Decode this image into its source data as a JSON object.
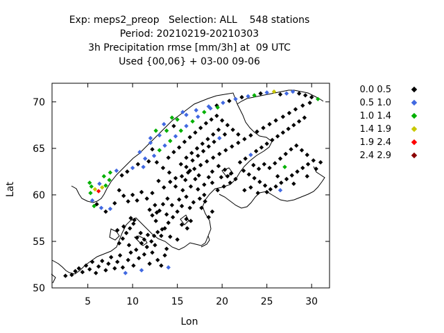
{
  "chart_data": {
    "type": "scatter",
    "title_lines": [
      "Exp: meps2_preop   Selection: ALL    548 stations",
      "Period: 20210219-20210303",
      "3h Precipitation rmse [mm/3h] at  09 UTC",
      "Used {00,06} + 03-00 09-06"
    ],
    "xlabel": "Lon",
    "ylabel": "Lat",
    "xlim": [
      1,
      32
    ],
    "ylim": [
      50,
      72
    ],
    "xticks": [
      5,
      10,
      15,
      20,
      25,
      30
    ],
    "yticks": [
      50,
      55,
      60,
      65,
      70
    ],
    "grid": false,
    "legend_position": "right",
    "classes": [
      {
        "label": "0.0 0.5",
        "color": "#000000"
      },
      {
        "label": "0.5 1.0",
        "color": "#4169e1"
      },
      {
        "label": "1.0 1.4",
        "color": "#00b000"
      },
      {
        "label": "1.4 1.9",
        "color": "#c8c800"
      },
      {
        "label": "1.9 2.4",
        "color": "#ff0000"
      },
      {
        "label": "2.4 2.9",
        "color": "#8b0000"
      }
    ],
    "points": [
      [
        2.5,
        51.3,
        0
      ],
      [
        3.2,
        51.4,
        0
      ],
      [
        3.6,
        51.8,
        0
      ],
      [
        4.0,
        52.1,
        0
      ],
      [
        4.4,
        51.7,
        0
      ],
      [
        4.8,
        52.4,
        0
      ],
      [
        5.2,
        52.0,
        0
      ],
      [
        5.5,
        52.8,
        0
      ],
      [
        5.9,
        51.6,
        0
      ],
      [
        6.2,
        52.3,
        0
      ],
      [
        6.6,
        52.9,
        0
      ],
      [
        7.0,
        51.9,
        0
      ],
      [
        7.3,
        52.6,
        0
      ],
      [
        7.6,
        53.3,
        0
      ],
      [
        8.0,
        52.1,
        0
      ],
      [
        8.3,
        52.8,
        0
      ],
      [
        8.6,
        53.5,
        0
      ],
      [
        8.9,
        52.2,
        0
      ],
      [
        9.2,
        51.6,
        1
      ],
      [
        9.5,
        53.0,
        0
      ],
      [
        9.8,
        53.8,
        0
      ],
      [
        10.1,
        52.4,
        0
      ],
      [
        10.4,
        54.1,
        0
      ],
      [
        10.7,
        53.2,
        0
      ],
      [
        11.0,
        51.9,
        1
      ],
      [
        11.3,
        53.6,
        0
      ],
      [
        11.6,
        54.4,
        0
      ],
      [
        11.9,
        52.6,
        0
      ],
      [
        12.2,
        53.8,
        0
      ],
      [
        12.5,
        54.6,
        0
      ],
      [
        12.8,
        53.0,
        0
      ],
      [
        13.2,
        52.4,
        0
      ],
      [
        13.6,
        53.5,
        0
      ],
      [
        14.0,
        52.2,
        1
      ],
      [
        13.8,
        54.2,
        0
      ],
      [
        8.5,
        54.8,
        0
      ],
      [
        8.9,
        55.3,
        0
      ],
      [
        9.3,
        55.9,
        0
      ],
      [
        9.7,
        56.4,
        0
      ],
      [
        10.1,
        56.9,
        0
      ],
      [
        9.0,
        56.6,
        0
      ],
      [
        8.3,
        56.2,
        0
      ],
      [
        10.5,
        55.4,
        0
      ],
      [
        10.9,
        55.9,
        0
      ],
      [
        11.3,
        55.2,
        0
      ],
      [
        11.7,
        55.7,
        0
      ],
      [
        12.1,
        55.0,
        0
      ],
      [
        12.4,
        55.6,
        0
      ],
      [
        11.0,
        54.8,
        0
      ],
      [
        9.6,
        54.6,
        0
      ],
      [
        10.2,
        57.3,
        0
      ],
      [
        9.8,
        57.5,
        0
      ],
      [
        12.8,
        56.0,
        0
      ],
      [
        13.2,
        55.6,
        0
      ],
      [
        13.6,
        56.4,
        0
      ],
      [
        14.0,
        57.0,
        0
      ],
      [
        14.5,
        57.6,
        0
      ],
      [
        15.0,
        58.2,
        0
      ],
      [
        15.5,
        58.8,
        0
      ],
      [
        16.0,
        57.4,
        0
      ],
      [
        16.4,
        58.6,
        0
      ],
      [
        12.6,
        57.2,
        0
      ],
      [
        12.2,
        57.8,
        0
      ],
      [
        11.9,
        58.4,
        0
      ],
      [
        12.5,
        58.9,
        0
      ],
      [
        13.0,
        58.3,
        0
      ],
      [
        13.4,
        59.0,
        0
      ],
      [
        13.9,
        59.6,
        0
      ],
      [
        14.4,
        58.9,
        0
      ],
      [
        15.2,
        59.5,
        0
      ],
      [
        16.0,
        59.8,
        0
      ],
      [
        16.8,
        59.2,
        0
      ],
      [
        17.5,
        59.6,
        0
      ],
      [
        18.1,
        59.3,
        0
      ],
      [
        18.0,
        60.0,
        0
      ],
      [
        17.3,
        60.6,
        0
      ],
      [
        16.5,
        60.9,
        0
      ],
      [
        15.6,
        60.5,
        0
      ],
      [
        14.8,
        60.9,
        0
      ],
      [
        14.2,
        61.4,
        0
      ],
      [
        13.5,
        60.8,
        0
      ],
      [
        12.9,
        61.5,
        0
      ],
      [
        12.2,
        60.2,
        0
      ],
      [
        11.6,
        59.6,
        0
      ],
      [
        11.0,
        60.3,
        0
      ],
      [
        10.5,
        59.4,
        0
      ],
      [
        10.0,
        60.0,
        0
      ],
      [
        9.5,
        59.3,
        0
      ],
      [
        9.0,
        59.9,
        0
      ],
      [
        8.5,
        60.5,
        0
      ],
      [
        8.0,
        59.1,
        0
      ],
      [
        7.5,
        58.5,
        1
      ],
      [
        7.0,
        58.2,
        0
      ],
      [
        6.5,
        58.6,
        1
      ],
      [
        6.0,
        59.0,
        0
      ],
      [
        5.7,
        58.8,
        2
      ],
      [
        5.5,
        59.4,
        1
      ],
      [
        5.3,
        60.2,
        2
      ],
      [
        5.4,
        60.9,
        2
      ],
      [
        5.2,
        61.3,
        2
      ],
      [
        5.8,
        60.6,
        3
      ],
      [
        6.2,
        60.4,
        4
      ],
      [
        6.6,
        60.8,
        3
      ],
      [
        7.0,
        61.0,
        2
      ],
      [
        7.4,
        61.6,
        2
      ],
      [
        6.3,
        61.2,
        1
      ],
      [
        6.8,
        62.0,
        2
      ],
      [
        7.5,
        62.4,
        2
      ],
      [
        8.2,
        62.6,
        1
      ],
      [
        8.8,
        62.1,
        0
      ],
      [
        9.4,
        62.5,
        0
      ],
      [
        10.0,
        62.9,
        1
      ],
      [
        10.6,
        63.3,
        0
      ],
      [
        11.2,
        63.0,
        1
      ],
      [
        11.8,
        63.6,
        0
      ],
      [
        12.4,
        64.2,
        1
      ],
      [
        13.0,
        64.8,
        2
      ],
      [
        13.6,
        65.3,
        1
      ],
      [
        14.2,
        65.8,
        2
      ],
      [
        14.8,
        66.3,
        1
      ],
      [
        15.4,
        66.9,
        2
      ],
      [
        16.0,
        67.4,
        1
      ],
      [
        16.7,
        67.9,
        2
      ],
      [
        17.3,
        68.4,
        1
      ],
      [
        18.0,
        68.9,
        2
      ],
      [
        18.7,
        69.3,
        1
      ],
      [
        19.4,
        69.6,
        0
      ],
      [
        20.1,
        69.9,
        1
      ],
      [
        20.8,
        70.1,
        0
      ],
      [
        21.5,
        70.3,
        1
      ],
      [
        22.2,
        70.5,
        0
      ],
      [
        22.9,
        70.6,
        1
      ],
      [
        23.6,
        70.7,
        2
      ],
      [
        24.3,
        70.9,
        0
      ],
      [
        25.0,
        71.0,
        1
      ],
      [
        25.8,
        71.1,
        3
      ],
      [
        26.5,
        70.8,
        0
      ],
      [
        27.2,
        70.9,
        1
      ],
      [
        27.9,
        71.1,
        1
      ],
      [
        28.6,
        70.9,
        0
      ],
      [
        29.3,
        70.7,
        0
      ],
      [
        30.0,
        70.5,
        0
      ],
      [
        30.7,
        70.3,
        2
      ],
      [
        29.8,
        69.9,
        0
      ],
      [
        29.0,
        69.6,
        0
      ],
      [
        28.2,
        69.2,
        0
      ],
      [
        27.5,
        68.8,
        0
      ],
      [
        26.8,
        68.4,
        0
      ],
      [
        26.0,
        68.0,
        0
      ],
      [
        25.3,
        67.6,
        0
      ],
      [
        24.6,
        67.2,
        0
      ],
      [
        23.9,
        66.8,
        0
      ],
      [
        23.2,
        66.4,
        0
      ],
      [
        22.5,
        66.0,
        0
      ],
      [
        21.8,
        65.6,
        0
      ],
      [
        21.1,
        65.2,
        0
      ],
      [
        20.4,
        64.8,
        0
      ],
      [
        19.7,
        64.4,
        0
      ],
      [
        19.0,
        64.0,
        0
      ],
      [
        18.3,
        63.6,
        0
      ],
      [
        17.6,
        63.2,
        0
      ],
      [
        16.9,
        62.8,
        0
      ],
      [
        16.2,
        62.4,
        0
      ],
      [
        15.5,
        62.0,
        0
      ],
      [
        14.8,
        61.8,
        0
      ],
      [
        14.1,
        62.4,
        0
      ],
      [
        13.4,
        62.9,
        0
      ],
      [
        12.7,
        63.5,
        0
      ],
      [
        14.0,
        64.0,
        0
      ],
      [
        14.6,
        64.6,
        0
      ],
      [
        15.2,
        65.1,
        0
      ],
      [
        15.8,
        65.7,
        0
      ],
      [
        16.4,
        66.2,
        0
      ],
      [
        17.0,
        66.7,
        0
      ],
      [
        17.6,
        67.2,
        0
      ],
      [
        18.2,
        67.7,
        0
      ],
      [
        18.8,
        68.1,
        0
      ],
      [
        19.4,
        68.5,
        0
      ],
      [
        20.0,
        68.0,
        0
      ],
      [
        20.6,
        67.5,
        0
      ],
      [
        21.2,
        67.0,
        0
      ],
      [
        21.8,
        66.5,
        0
      ],
      [
        16.0,
        64.0,
        0
      ],
      [
        16.6,
        64.5,
        0
      ],
      [
        17.2,
        65.0,
        0
      ],
      [
        17.8,
        65.5,
        0
      ],
      [
        18.4,
        66.0,
        0
      ],
      [
        19.0,
        66.5,
        0
      ],
      [
        19.6,
        67.0,
        0
      ],
      [
        15.4,
        63.3,
        0
      ],
      [
        16.0,
        63.0,
        0
      ],
      [
        16.7,
        63.7,
        0
      ],
      [
        17.3,
        64.2,
        0
      ],
      [
        17.9,
        64.7,
        0
      ],
      [
        18.5,
        65.2,
        0
      ],
      [
        19.1,
        65.7,
        0
      ],
      [
        19.7,
        66.1,
        1
      ],
      [
        20.3,
        66.5,
        0
      ],
      [
        22.0,
        63.5,
        0
      ],
      [
        22.6,
        63.9,
        0
      ],
      [
        23.2,
        64.3,
        1
      ],
      [
        23.8,
        64.7,
        0
      ],
      [
        24.4,
        65.1,
        0
      ],
      [
        25.0,
        65.5,
        0
      ],
      [
        25.6,
        65.9,
        0
      ],
      [
        26.2,
        66.3,
        0
      ],
      [
        26.8,
        66.7,
        0
      ],
      [
        27.4,
        67.1,
        0
      ],
      [
        28.0,
        67.5,
        0
      ],
      [
        28.6,
        67.9,
        0
      ],
      [
        29.2,
        68.3,
        0
      ],
      [
        22.4,
        62.6,
        0
      ],
      [
        23.0,
        62.2,
        0
      ],
      [
        23.6,
        61.8,
        0
      ],
      [
        24.2,
        61.4,
        0
      ],
      [
        24.8,
        61.0,
        0
      ],
      [
        25.4,
        60.6,
        0
      ],
      [
        26.0,
        60.9,
        0
      ],
      [
        26.6,
        61.3,
        0
      ],
      [
        27.2,
        61.7,
        0
      ],
      [
        27.8,
        62.1,
        0
      ],
      [
        28.4,
        62.5,
        0
      ],
      [
        29.0,
        62.9,
        0
      ],
      [
        29.6,
        63.3,
        0
      ],
      [
        30.2,
        63.7,
        0
      ],
      [
        29.5,
        64.3,
        0
      ],
      [
        28.9,
        64.8,
        0
      ],
      [
        28.3,
        65.3,
        0
      ],
      [
        27.7,
        64.9,
        0
      ],
      [
        27.1,
        64.4,
        0
      ],
      [
        26.5,
        63.9,
        0
      ],
      [
        25.9,
        63.4,
        0
      ],
      [
        25.3,
        62.9,
        0
      ],
      [
        24.7,
        63.3,
        0
      ],
      [
        24.1,
        62.8,
        0
      ],
      [
        23.5,
        63.2,
        0
      ],
      [
        26.2,
        62.0,
        0
      ],
      [
        27.0,
        63.0,
        2
      ],
      [
        24.0,
        60.2,
        0
      ],
      [
        25.0,
        60.3,
        0
      ],
      [
        26.5,
        60.5,
        1
      ],
      [
        22.5,
        60.5,
        0
      ],
      [
        23.2,
        60.8,
        0
      ],
      [
        28.0,
        61.2,
        0
      ],
      [
        29.5,
        62.0,
        0
      ],
      [
        30.5,
        62.8,
        0
      ],
      [
        31.0,
        63.5,
        0
      ],
      [
        19.5,
        60.5,
        0
      ],
      [
        20.2,
        60.9,
        0
      ],
      [
        20.9,
        61.3,
        0
      ],
      [
        21.5,
        61.7,
        0
      ],
      [
        21.0,
        62.3,
        0
      ],
      [
        20.3,
        62.7,
        0
      ],
      [
        19.6,
        63.1,
        0
      ],
      [
        18.9,
        62.5,
        0
      ],
      [
        18.5,
        61.9,
        0
      ],
      [
        18.9,
        61.3,
        0
      ],
      [
        19.9,
        61.9,
        0
      ],
      [
        20.6,
        62.0,
        0
      ],
      [
        12.2,
        64.9,
        0
      ],
      [
        11.4,
        63.9,
        1
      ],
      [
        10.8,
        64.6,
        1
      ],
      [
        12.0,
        65.6,
        1
      ],
      [
        13.0,
        66.4,
        1
      ],
      [
        13.8,
        66.9,
        2
      ],
      [
        14.6,
        67.4,
        0
      ],
      [
        15.0,
        68.1,
        2
      ],
      [
        16.0,
        68.6,
        1
      ],
      [
        17.1,
        69.1,
        1
      ],
      [
        18.5,
        69.5,
        1
      ],
      [
        19.5,
        69.4,
        2
      ],
      [
        15.6,
        68.9,
        1
      ],
      [
        14.4,
        68.3,
        2
      ],
      [
        13.5,
        67.6,
        1
      ],
      [
        12.6,
        66.9,
        2
      ],
      [
        12.0,
        66.1,
        1
      ],
      [
        15.0,
        55.2,
        0
      ],
      [
        16.1,
        56.4,
        0
      ],
      [
        16.5,
        57.2,
        0
      ],
      [
        18.5,
        57.6,
        0
      ],
      [
        14.2,
        55.5,
        0
      ],
      [
        13.3,
        56.3,
        0
      ],
      [
        15.5,
        56.8,
        0
      ],
      [
        18.9,
        58.2,
        0
      ],
      [
        17.7,
        58.6,
        0
      ],
      [
        13.8,
        57.9,
        0
      ],
      [
        12.7,
        58.1,
        0
      ],
      [
        15.9,
        61.6,
        0
      ],
      [
        16.4,
        62.6,
        0
      ],
      [
        17.0,
        61.7,
        0
      ],
      [
        18.0,
        61.1,
        0
      ],
      [
        17.4,
        62.1,
        0
      ]
    ]
  }
}
